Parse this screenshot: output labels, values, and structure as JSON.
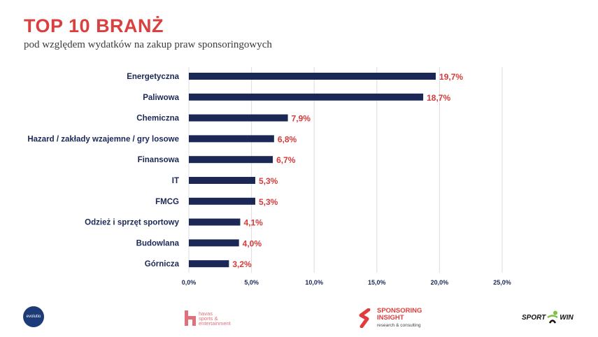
{
  "header": {
    "title": "TOP 10 BRANŻ",
    "subtitle": "pod względem wydatków na zakup praw sponsoringowych"
  },
  "chart_data": {
    "type": "bar",
    "orientation": "horizontal",
    "title": "TOP 10 BRANŻ",
    "subtitle": "pod względem wydatków na zakup praw sponsoringowych",
    "categories": [
      "Energetyczna",
      "Paliwowa",
      "Chemiczna",
      "Hazard / zakłady wzajemne / gry losowe",
      "Finansowa",
      "IT",
      "FMCG",
      "Odzież i sprzęt sportowy",
      "Budowlana",
      "Górnicza"
    ],
    "values": [
      19.7,
      18.7,
      7.9,
      6.8,
      6.7,
      5.3,
      5.3,
      4.1,
      4.0,
      3.2
    ],
    "value_labels": [
      "19,7%",
      "18,7%",
      "7,9%",
      "6,8%",
      "6,7%",
      "5,3%",
      "5,3%",
      "4,1%",
      "4,0%",
      "3,2%"
    ],
    "xlim": [
      0,
      25
    ],
    "xticks": [
      0,
      5,
      10,
      15,
      20,
      25
    ],
    "xtick_labels": [
      "0,0%",
      "5,0%",
      "10,0%",
      "15,0%",
      "20,0%",
      "25,0%"
    ],
    "xlabel": "",
    "ylabel": "",
    "grid": true,
    "colors": {
      "bar": "#1b2856",
      "value_label": "#d63a3a",
      "title": "#d94040"
    }
  },
  "footer": {
    "logos": {
      "evolutio": "evolutio",
      "havas_line1": "havas",
      "havas_line2": "sports &",
      "havas_line3": "entertainment",
      "sponsoring_insight_line1": "SPONSORING",
      "sponsoring_insight_line2": "INSIGHT",
      "sponsoring_insight_sub": "research & consulting",
      "sportwin_a": "SPORT",
      "sportwin_b": "WIN"
    }
  }
}
